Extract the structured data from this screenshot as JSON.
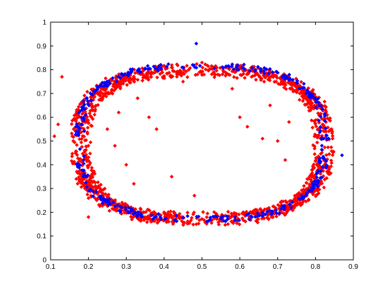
{
  "chart_data": {
    "type": "scatter",
    "title": "",
    "xlabel": "",
    "ylabel": "",
    "xlim": [
      0.1,
      0.9
    ],
    "ylim": [
      0,
      1
    ],
    "xticks": [
      "0.1",
      "0.2",
      "0.3",
      "0.4",
      "0.5",
      "0.6",
      "0.7",
      "0.8",
      "0.9"
    ],
    "yticks": [
      "0",
      "0.1",
      "0.2",
      "0.3",
      "0.4",
      "0.5",
      "0.6",
      "0.7",
      "0.8",
      "0.9",
      "1"
    ],
    "grid": false,
    "legend": "none",
    "marker": "diamond",
    "series": [
      {
        "color": "#ff0000",
        "shape": "ring",
        "center": [
          0.5,
          0.485
        ],
        "radius_x": [
          0.315,
          0.375
        ],
        "radius_y": [
          0.305,
          0.365
        ],
        "points_count": 1500,
        "extra_points": [
          [
            0.19,
            0.46
          ],
          [
            0.21,
            0.36
          ],
          [
            0.27,
            0.48
          ],
          [
            0.36,
            0.6
          ],
          [
            0.38,
            0.55
          ],
          [
            0.3,
            0.4
          ],
          [
            0.32,
            0.32
          ],
          [
            0.48,
            0.27
          ],
          [
            0.45,
            0.75
          ],
          [
            0.6,
            0.6
          ],
          [
            0.62,
            0.56
          ],
          [
            0.66,
            0.51
          ],
          [
            0.7,
            0.5
          ],
          [
            0.73,
            0.58
          ],
          [
            0.72,
            0.42
          ],
          [
            0.55,
            0.18
          ],
          [
            0.4,
            0.2
          ],
          [
            0.28,
            0.62
          ],
          [
            0.33,
            0.68
          ],
          [
            0.5,
            0.83
          ],
          [
            0.58,
            0.72
          ],
          [
            0.68,
            0.65
          ],
          [
            0.42,
            0.35
          ],
          [
            0.25,
            0.55
          ],
          [
            0.16,
            0.5
          ],
          [
            0.11,
            0.52
          ],
          [
            0.12,
            0.57
          ],
          [
            0.13,
            0.77
          ],
          [
            0.2,
            0.18
          ]
        ]
      },
      {
        "color": "#0000ff",
        "shape": "ring",
        "center": [
          0.5,
          0.495
        ],
        "radius_x": [
          0.335,
          0.36
        ],
        "radius_y": [
          0.33,
          0.36
        ],
        "points_count": 380,
        "extra_points": [
          [
            0.485,
            0.91
          ],
          [
            0.87,
            0.44
          ]
        ]
      }
    ]
  }
}
